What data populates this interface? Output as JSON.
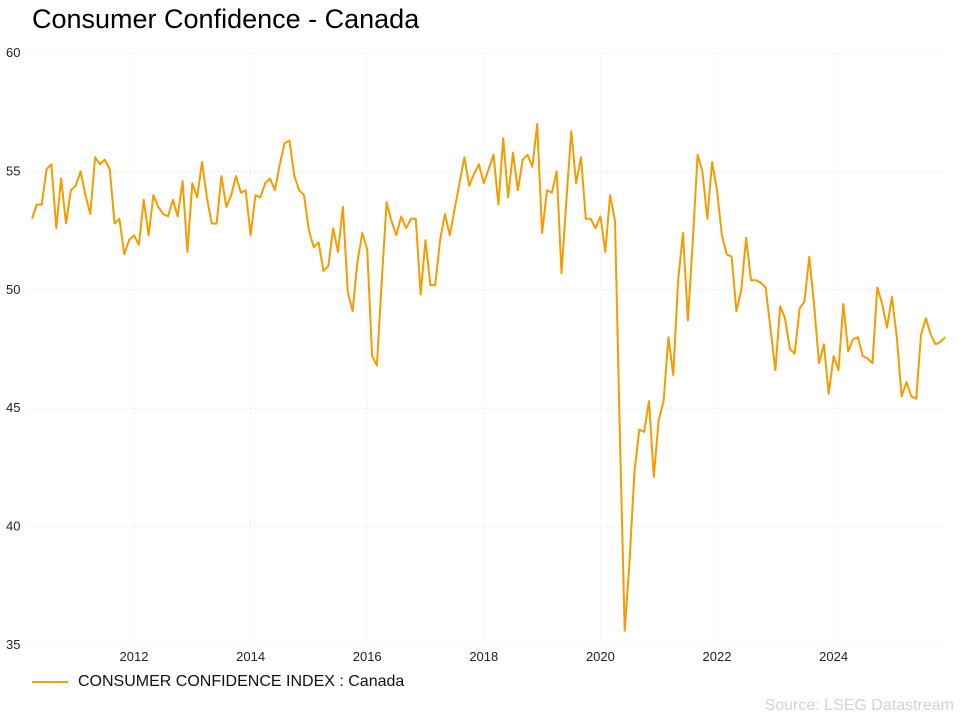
{
  "chart_data": {
    "type": "line",
    "title": "Consumer Confidence - Canada",
    "xlabel": "",
    "ylabel": "",
    "ylim": [
      35,
      60
    ],
    "yticks": [
      35,
      40,
      45,
      50,
      55,
      60
    ],
    "xticks": [
      "2012",
      "2014",
      "2016",
      "2018",
      "2020",
      "2022",
      "2024"
    ],
    "grid": true,
    "legend_position": "bottom-left",
    "start": "2010-04",
    "frequency": "monthly",
    "series": [
      {
        "name": "CONSUMER CONFIDENCE INDEX : Canada",
        "color": "#f59c00",
        "values": [
          53.0,
          53.6,
          53.6,
          55.1,
          55.3,
          52.6,
          54.7,
          52.8,
          54.2,
          54.4,
          55.0,
          54.0,
          53.2,
          55.6,
          55.3,
          55.5,
          55.1,
          52.8,
          53.0,
          51.5,
          52.1,
          52.3,
          51.9,
          53.8,
          52.3,
          54.0,
          53.5,
          53.2,
          53.1,
          53.8,
          53.1,
          54.6,
          51.6,
          54.5,
          53.9,
          55.4,
          53.9,
          52.8,
          52.8,
          54.8,
          53.5,
          54.0,
          54.8,
          54.1,
          54.2,
          52.3,
          54.0,
          53.9,
          54.5,
          54.7,
          54.2,
          55.3,
          56.2,
          56.3,
          54.8,
          54.2,
          54.0,
          52.5,
          51.8,
          52.0,
          50.8,
          51.0,
          52.6,
          51.6,
          53.5,
          49.9,
          49.1,
          51.2,
          52.4,
          51.7,
          47.2,
          46.8,
          50.4,
          53.7,
          52.9,
          52.3,
          53.1,
          52.6,
          53.0,
          53.0,
          49.8,
          52.1,
          50.2,
          50.2,
          52.1,
          53.2,
          52.3,
          53.4,
          54.5,
          55.6,
          54.4,
          54.9,
          55.3,
          54.5,
          55.1,
          55.7,
          53.6,
          56.4,
          53.9,
          55.8,
          54.2,
          55.5,
          55.7,
          55.2,
          57.0,
          52.4,
          54.2,
          54.1,
          55.0,
          50.7,
          53.8,
          56.7,
          54.5,
          55.6,
          53.0,
          53.0,
          52.6,
          53.1,
          51.6,
          54.0,
          52.9,
          44.0,
          35.6,
          38.5,
          42.3,
          44.1,
          44.0,
          45.3,
          42.1,
          44.5,
          45.3,
          48.0,
          46.4,
          50.4,
          52.4,
          48.7,
          52.0,
          55.7,
          55.0,
          53.0,
          55.4,
          54.2,
          52.3,
          51.5,
          51.4,
          49.1,
          50.0,
          52.2,
          50.4,
          50.4,
          50.3,
          50.1,
          48.4,
          46.6,
          49.3,
          48.8,
          47.5,
          47.3,
          49.2,
          49.5,
          51.4,
          49.3,
          46.9,
          47.7,
          45.6,
          47.2,
          46.6,
          49.4,
          47.4,
          47.9,
          48.0,
          47.2,
          47.1,
          46.9,
          50.1,
          49.4,
          48.4,
          49.7,
          48.0,
          45.5,
          46.1,
          45.5,
          45.4,
          48.1,
          48.8,
          48.1,
          47.7,
          47.8,
          48.0
        ]
      }
    ]
  },
  "legend": {
    "label": "CONSUMER CONFIDENCE INDEX : Canada"
  },
  "source": "Source: LSEG Datastream"
}
